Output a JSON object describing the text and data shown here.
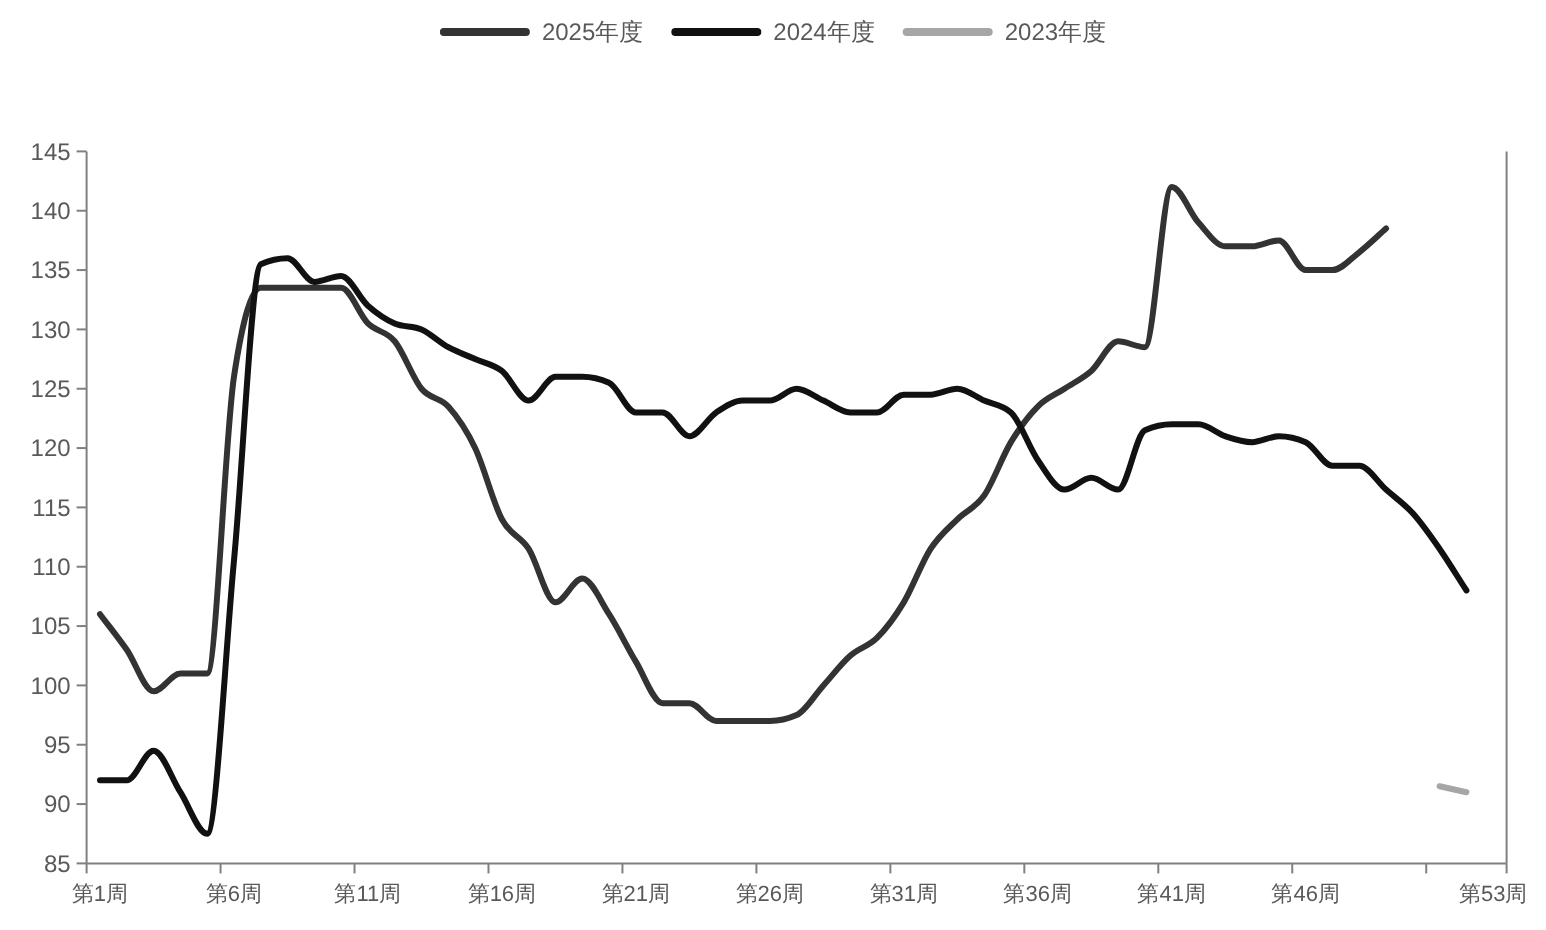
{
  "chart_data": {
    "type": "line",
    "categories": [
      "第1周",
      null,
      null,
      null,
      null,
      "第6周",
      null,
      null,
      null,
      null,
      "第11周",
      null,
      null,
      null,
      null,
      "第16周",
      null,
      null,
      null,
      null,
      "第21周",
      null,
      null,
      null,
      null,
      "第26周",
      null,
      null,
      null,
      null,
      "第31周",
      null,
      null,
      null,
      null,
      "第36周",
      null,
      null,
      null,
      null,
      "第41周",
      null,
      null,
      null,
      null,
      "第46周",
      null,
      null,
      null,
      null,
      null,
      null,
      "第53周"
    ],
    "series": [
      {
        "name": "2025年度",
        "color": "#333333",
        "values": [
          106,
          103,
          99.5,
          101,
          101,
          126,
          133.5,
          133.5,
          133.5,
          133.5,
          130.5,
          129,
          125,
          123.5,
          120,
          114,
          111.5,
          107,
          109,
          106,
          102,
          98.5,
          98.5,
          97,
          97,
          97,
          97.5,
          100,
          102.5,
          104,
          107,
          111.5,
          114,
          116,
          120.5,
          123.5,
          125,
          126.5,
          129,
          128.5,
          142,
          139,
          137,
          137,
          137.5,
          135,
          135,
          136.5,
          138.5,
          null,
          null,
          null,
          null
        ]
      },
      {
        "name": "2024年度",
        "color": "#111111",
        "values": [
          92,
          92,
          94.5,
          91,
          87.5,
          110.5,
          135.5,
          136,
          134,
          134.5,
          132,
          130.5,
          130,
          128.5,
          127.5,
          126.5,
          124,
          126,
          126,
          125.5,
          123,
          123,
          121,
          123,
          124,
          124,
          125,
          124,
          123,
          123,
          124.5,
          124.5,
          125,
          124,
          123,
          119,
          116.5,
          117.5,
          116.5,
          121.5,
          122,
          122,
          121,
          120.5,
          121,
          120.5,
          118.5,
          118.5,
          116.5,
          114.5,
          111.5,
          108,
          null
        ]
      },
      {
        "name": "2023年度",
        "color": "#a6a6a6",
        "values": [
          null,
          null,
          null,
          null,
          null,
          null,
          null,
          null,
          null,
          null,
          null,
          null,
          null,
          null,
          null,
          null,
          null,
          null,
          null,
          null,
          null,
          null,
          null,
          null,
          null,
          null,
          null,
          null,
          null,
          null,
          null,
          null,
          null,
          null,
          null,
          null,
          null,
          null,
          null,
          null,
          null,
          null,
          null,
          null,
          null,
          null,
          null,
          null,
          null,
          null,
          91.5,
          91,
          null
        ]
      }
    ],
    "ylim": [
      85,
      145
    ],
    "yticks": [
      85,
      90,
      95,
      100,
      105,
      110,
      115,
      120,
      125,
      130,
      135,
      140,
      145
    ],
    "legend": "top"
  }
}
